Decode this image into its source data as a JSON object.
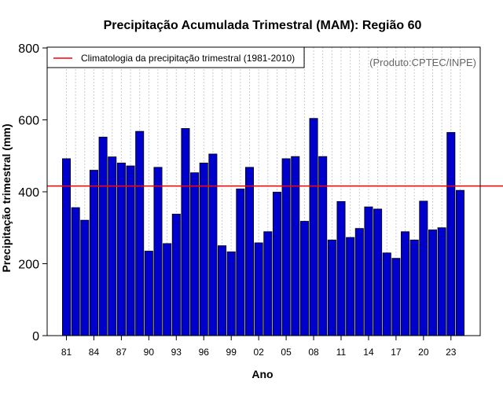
{
  "chart_data": {
    "type": "bar",
    "title": "Precipitação Acumulada Trimestral (MAM): Região 60",
    "xlabel": "Ano",
    "ylabel": "Precipitação trimestral (mm)",
    "ylim": [
      0,
      800
    ],
    "yticks": [
      0,
      200,
      400,
      600,
      800
    ],
    "ytick_labels": [
      "0",
      "200",
      "400",
      "600",
      "800"
    ],
    "categories": [
      "1981",
      "1982",
      "1983",
      "1984",
      "1985",
      "1986",
      "1987",
      "1988",
      "1989",
      "1990",
      "1991",
      "1992",
      "1993",
      "1994",
      "1995",
      "1996",
      "1997",
      "1998",
      "1999",
      "2000",
      "2001",
      "2002",
      "2003",
      "2004",
      "2005",
      "2006",
      "2007",
      "2008",
      "2009",
      "2010",
      "2011",
      "2012",
      "2013",
      "2014",
      "2015",
      "2016",
      "2017",
      "2018",
      "2019",
      "2020",
      "2021",
      "2022",
      "2023",
      "2024"
    ],
    "values": [
      492,
      356,
      321,
      460,
      552,
      497,
      480,
      472,
      568,
      235,
      468,
      256,
      338,
      576,
      453,
      480,
      505,
      250,
      233,
      408,
      468,
      258,
      289,
      399,
      492,
      498,
      318,
      604,
      498,
      266,
      373,
      273,
      298,
      358,
      352,
      230,
      215,
      289,
      266,
      374,
      294,
      300,
      565,
      404
    ],
    "xtick_labels": [
      "81",
      "84",
      "87",
      "90",
      "93",
      "96",
      "99",
      "02",
      "05",
      "08",
      "11",
      "14",
      "17",
      "20",
      "23"
    ],
    "xtick_indices": [
      0,
      3,
      6,
      9,
      12,
      15,
      18,
      21,
      24,
      27,
      30,
      33,
      36,
      39,
      42
    ],
    "climatology": 416,
    "legend": "Climatologia da precipitação trimestral (1981-2010)",
    "legend_position": "top-left",
    "credit": "(Produto:CPTEC/INPE)",
    "grid": "vertical-dotted",
    "colors": {
      "bar": "#0000cd",
      "bar_edge": "#000000",
      "climatology": "#ff0000",
      "grid": "#cccccc",
      "credit": "#666666"
    }
  }
}
